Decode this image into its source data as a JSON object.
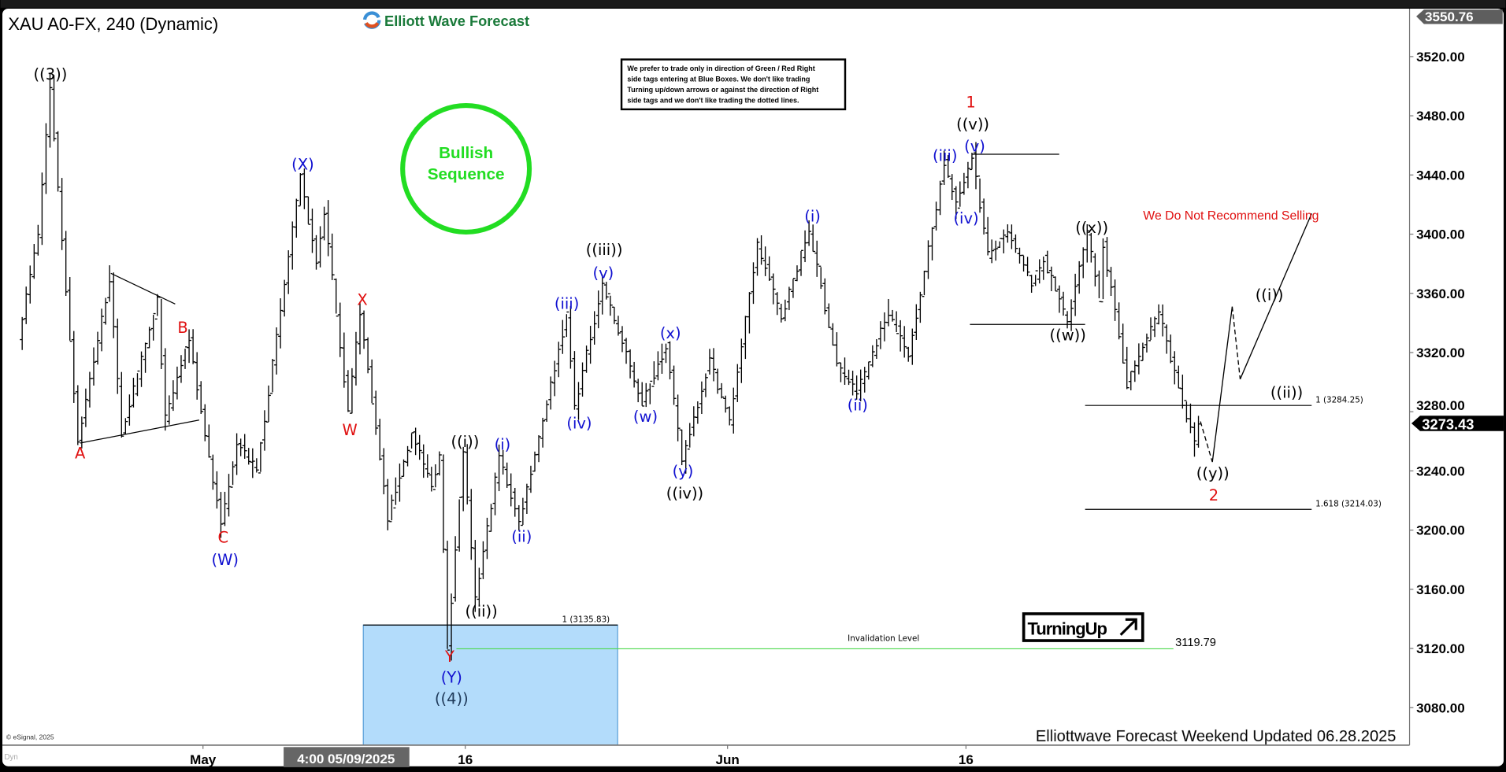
{
  "header": {
    "title": "XAU A0-FX, 240 (Dynamic)",
    "logo_text": "Elliott Wave Forecast",
    "note_lines": [
      "We prefer to trade only in direction of Green / Red Right",
      "side tags entering at Blue Boxes. We don't like trading",
      "Turning up/down arrows or against the direction of Right",
      "side tags and we don't like trading the dotted lines."
    ]
  },
  "badge": {
    "line1": "Bullish",
    "line2": "Sequence",
    "color": "#22dd22"
  },
  "warning": "We Do Not Recommend Selling",
  "turning": {
    "label": "TurningUp",
    "icon": "arrow-up-right-icon"
  },
  "levels": {
    "fib1": {
      "label": "1 (3284.25)",
      "price": 3284.25
    },
    "fib1618": {
      "label": "1.618 (3214.03)",
      "price": 3214.03
    },
    "box": {
      "label": "1 (3135.83)",
      "top": 3135.83,
      "color": "#b3dcfb"
    },
    "invalidation": {
      "label": "Invalidation Level",
      "value_label": "3119.79",
      "price": 3119.79,
      "color": "#4cd94c"
    },
    "top_line": 3454,
    "w_line": 3339
  },
  "footer": {
    "updated": "Elliottwave Forecast Weekend Updated 06.28.2025",
    "copyright": "© eSignal, 2025",
    "dyn": "Dyn",
    "cursor_date": "4:00 05/09/2025",
    "x_ticks": [
      {
        "label": "May",
        "date": "2025-05-01"
      },
      {
        "label": "16",
        "date": "2025-05-16"
      },
      {
        "label": "Jun",
        "date": "2025-06-02"
      },
      {
        "label": "16",
        "date": "2025-06-16"
      }
    ]
  },
  "chart_data": {
    "type": "bar",
    "title": "XAU A0-FX, 240 (Dynamic)",
    "interval": "240",
    "ylim": [
      3055,
      3555
    ],
    "y_ticks": [
      "3520.00",
      "3480.00",
      "3440.00",
      "3400.00",
      "3360.00",
      "3320.00",
      "3280.00",
      "3240.00",
      "3200.00",
      "3160.00",
      "3120.00",
      "3080.00"
    ],
    "y_tick_values": [
      3520,
      3480,
      3440,
      3400,
      3360,
      3320,
      3280,
      3240,
      3200,
      3160,
      3120,
      3080
    ],
    "high_tag": "3550.76",
    "last_price": "3273.43",
    "last_price_value": 3273.43,
    "price_path": [
      [
        "2025-04-21 08",
        3330
      ],
      [
        "2025-04-22 04",
        3400
      ],
      [
        "2025-04-22 16",
        3500
      ],
      [
        "2025-04-23 20",
        3260
      ],
      [
        "2025-04-25 04",
        3370
      ],
      [
        "2025-04-25 16",
        3265
      ],
      [
        "2025-04-29 04",
        3355
      ],
      [
        "2025-04-29 12",
        3275
      ],
      [
        "2025-04-30 12",
        3330
      ],
      [
        "2025-05-01 00",
        3280
      ],
      [
        "2025-05-01 20",
        3203
      ],
      [
        "2025-05-02 12",
        3260
      ],
      [
        "2025-05-05 08",
        3240
      ],
      [
        "2025-05-07 04",
        3438
      ],
      [
        "2025-05-07 20",
        3380
      ],
      [
        "2025-05-08 04",
        3415
      ],
      [
        "2025-05-09 04",
        3280
      ],
      [
        "2025-05-09 16",
        3348
      ],
      [
        "2025-05-12 20",
        3208
      ],
      [
        "2025-05-13 20",
        3265
      ],
      [
        "2025-05-14 16",
        3230
      ],
      [
        "2025-05-15 00",
        3250
      ],
      [
        "2025-05-15 08",
        3120
      ],
      [
        "2025-05-16 00",
        3254
      ],
      [
        "2025-05-16 12",
        3152
      ],
      [
        "2025-05-19 12",
        3250
      ],
      [
        "2025-05-20 08",
        3205
      ],
      [
        "2025-05-22 08",
        3345
      ],
      [
        "2025-05-22 16",
        3283
      ],
      [
        "2025-05-23 20",
        3366
      ],
      [
        "2025-05-27 12",
        3286
      ],
      [
        "2025-05-28 12",
        3325
      ],
      [
        "2025-05-29 04",
        3247
      ],
      [
        "2025-05-30 08",
        3315
      ],
      [
        "2025-06-02 04",
        3273
      ],
      [
        "2025-06-03 08",
        3393
      ],
      [
        "2025-06-04 08",
        3344
      ],
      [
        "2025-06-05 12",
        3403
      ],
      [
        "2025-06-06 16",
        3312
      ],
      [
        "2025-06-09 12",
        3293
      ],
      [
        "2025-06-10 20",
        3348
      ],
      [
        "2025-06-11 16",
        3317
      ],
      [
        "2025-06-13 04",
        3448
      ],
      [
        "2025-06-13 16",
        3419
      ],
      [
        "2025-06-16 08",
        3454
      ],
      [
        "2025-06-17 00",
        3386
      ],
      [
        "2025-06-17 20",
        3400
      ],
      [
        "2025-06-18 20",
        3367
      ],
      [
        "2025-06-19 08",
        3383
      ],
      [
        "2025-06-20 08",
        3341
      ],
      [
        "2025-06-23 04",
        3400
      ],
      [
        "2025-06-23 16",
        3357
      ],
      [
        "2025-06-23 20",
        3393
      ],
      [
        "2025-06-24 16",
        3315
      ],
      [
        "2025-06-24 20",
        3299
      ],
      [
        "2025-06-26 04",
        3348
      ],
      [
        "2025-06-27 04",
        3286
      ],
      [
        "2025-06-27 16",
        3258
      ],
      [
        "2025-06-27 20",
        3273.43
      ]
    ],
    "projection": [
      [
        "2025-06-27 20",
        3273.43,
        "dashed"
      ],
      [
        "2025-06-28 08",
        3246,
        "solid"
      ],
      [
        "2025-07-01 04",
        3351,
        "dashed"
      ],
      [
        "2025-07-01 12",
        3302,
        "solid"
      ],
      [
        "2025-07-04 12",
        3414,
        "solid"
      ]
    ],
    "wave_labels": [
      {
        "t": "((3))",
        "c": "#000000"
      },
      {
        "t": "A",
        "c": "#e01010"
      },
      {
        "t": "B",
        "c": "#e01010"
      },
      {
        "t": "C",
        "c": "#e01010"
      },
      {
        "t": "(W)",
        "c": "#1010d0"
      },
      {
        "t": "(X)",
        "c": "#1010d0"
      },
      {
        "t": "X",
        "c": "#e01010"
      },
      {
        "t": "W",
        "c": "#e01010"
      },
      {
        "t": "((i))",
        "c": "#000000"
      },
      {
        "t": "((ii))",
        "c": "#000000"
      },
      {
        "t": "Y",
        "c": "#e01010"
      },
      {
        "t": "(Y)",
        "c": "#1010d0"
      },
      {
        "t": "((4))",
        "c": "#1f3a5a"
      },
      {
        "t": "(i)",
        "c": "#1010d0"
      },
      {
        "t": "(ii)",
        "c": "#1010d0"
      },
      {
        "t": "(iii)",
        "c": "#1010d0"
      },
      {
        "t": "(iv)",
        "c": "#1010d0"
      },
      {
        "t": "((iii))",
        "c": "#000000"
      },
      {
        "t": "(v)",
        "c": "#1010d0"
      },
      {
        "t": "(w)",
        "c": "#1010d0"
      },
      {
        "t": "(x)",
        "c": "#1010d0"
      },
      {
        "t": "(y)",
        "c": "#1010d0"
      },
      {
        "t": "((iv))",
        "c": "#000000"
      },
      {
        "t": "(i)",
        "c": "#1010d0"
      },
      {
        "t": "(ii)",
        "c": "#1010d0"
      },
      {
        "t": "(iii)",
        "c": "#1010d0"
      },
      {
        "t": "(iv)",
        "c": "#1010d0"
      },
      {
        "t": "(v)",
        "c": "#1010d0"
      },
      {
        "t": "((v))",
        "c": "#000000"
      },
      {
        "t": "1",
        "c": "#e01010"
      },
      {
        "t": "((w))",
        "c": "#000000"
      },
      {
        "t": "((x))",
        "c": "#000000"
      },
      {
        "t": "((y))",
        "c": "#000000"
      },
      {
        "t": "2",
        "c": "#e01010"
      },
      {
        "t": "((i))",
        "c": "#000000"
      },
      {
        "t": "((ii))",
        "c": "#000000"
      }
    ]
  }
}
